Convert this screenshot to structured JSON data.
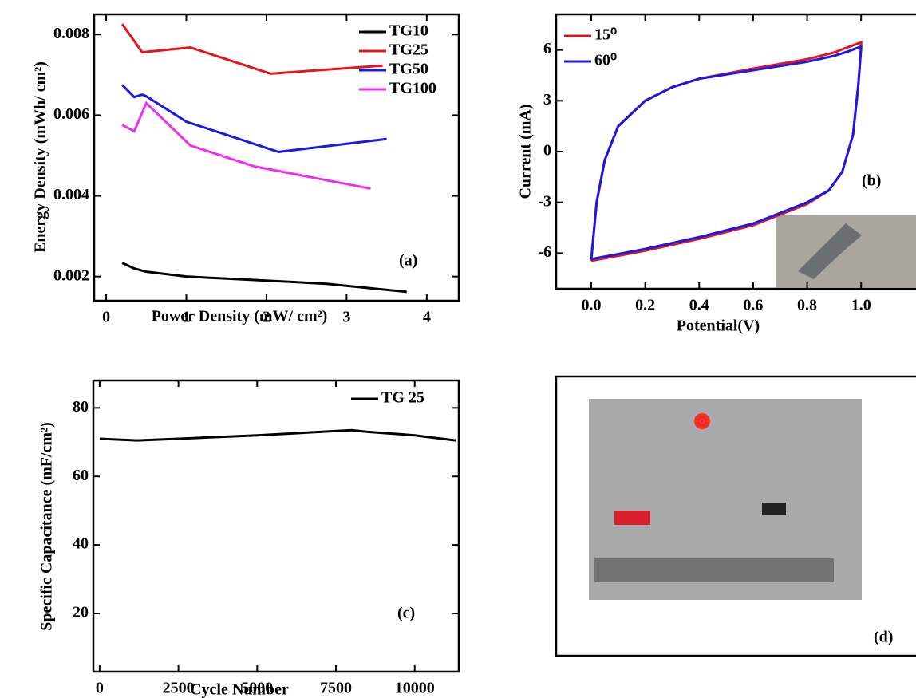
{
  "chart_data": [
    {
      "type": "line",
      "annotation": "(a)",
      "x_label": "Power Density (mW/ cm²)",
      "y_label": "Energy Density (mWh/ cm²)",
      "xlim": [
        -0.15,
        4.4
      ],
      "xticks": [
        0,
        1,
        2,
        3,
        4
      ],
      "ylim": [
        0.0014,
        0.0085
      ],
      "yticks": [
        0.002,
        0.004,
        0.006,
        0.008
      ],
      "legend": "upper right",
      "series": [
        {
          "name": "TG10",
          "color": "#000000",
          "x": [
            0.2,
            0.35,
            0.5,
            1.0,
            2.0,
            2.75,
            3.75
          ],
          "values": [
            0.00234,
            0.0022,
            0.00212,
            0.002,
            0.0019,
            0.00182,
            0.00162
          ]
        },
        {
          "name": "TG25",
          "color": "#e8141c",
          "x": [
            0.2,
            0.45,
            1.05,
            2.05,
            3.45
          ],
          "values": [
            0.00826,
            0.00756,
            0.00768,
            0.00703,
            0.00723
          ]
        },
        {
          "name": "TG50",
          "color": "#1a1ae6",
          "x": [
            0.2,
            0.35,
            0.45,
            0.5,
            1.0,
            2.15,
            3.5
          ],
          "values": [
            0.00675,
            0.00645,
            0.00651,
            0.00647,
            0.00584,
            0.00509,
            0.00541
          ]
        },
        {
          "name": "TG100",
          "color": "#f02ef0",
          "x": [
            0.2,
            0.35,
            0.5,
            1.05,
            1.85,
            3.3
          ],
          "values": [
            0.00576,
            0.0056,
            0.0063,
            0.00525,
            0.00473,
            0.00418
          ]
        }
      ]
    },
    {
      "type": "line",
      "annotation": "(b)",
      "x_label": "Potential(V)",
      "y_label": "Current (mA)",
      "xlim": [
        -0.13,
        1.23
      ],
      "xticks": [
        {
          "value": 0,
          "label": "0.0"
        },
        0.2,
        0.4,
        0.6,
        0.8,
        {
          "value": 1,
          "label": "1.0"
        }
      ],
      "ylim": [
        -8.1,
        8.1
      ],
      "yticks": [
        6,
        3,
        0,
        -3,
        -6
      ],
      "legend": "upper left",
      "series": [
        {
          "name": "15⁰",
          "color": "#e8141c",
          "x": [
            0,
            0.02,
            0.05,
            0.1,
            0.2,
            0.3,
            0.4,
            0.6,
            0.8,
            0.9,
            0.95,
            1.0,
            1.0,
            0.99,
            0.97,
            0.93,
            0.88,
            0.8,
            0.6,
            0.4,
            0.2,
            0.1,
            0
          ],
          "values": [
            -6.45,
            -3,
            -0.5,
            1.5,
            3,
            3.8,
            4.3,
            4.9,
            5.45,
            5.85,
            6.15,
            6.45,
            6.3,
            4,
            1,
            -1.2,
            -2.3,
            -3.1,
            -4.35,
            -5.15,
            -5.85,
            -6.15,
            -6.45
          ]
        },
        {
          "name": "60⁰",
          "color": "#1a1ae6",
          "x": [
            0,
            0.02,
            0.05,
            0.1,
            0.2,
            0.3,
            0.4,
            0.6,
            0.8,
            0.9,
            0.95,
            1.0,
            1.0,
            0.99,
            0.97,
            0.93,
            0.88,
            0.8,
            0.6,
            0.4,
            0.2,
            0.1,
            0
          ],
          "values": [
            -6.35,
            -3,
            -0.5,
            1.5,
            3,
            3.8,
            4.3,
            4.8,
            5.3,
            5.65,
            5.9,
            6.2,
            6.1,
            4,
            1,
            -1.2,
            -2.3,
            -3.0,
            -4.25,
            -5.05,
            -5.75,
            -6.05,
            -6.35
          ]
        }
      ]
    },
    {
      "type": "line",
      "annotation": "(c)",
      "x_label": "Cycle Number",
      "y_label": "Specific Capacitance (mF/cm²)",
      "xlim": [
        -200,
        11400
      ],
      "xticks": [
        0,
        2500,
        5000,
        7500,
        10000
      ],
      "ylim": [
        3,
        88
      ],
      "yticks": [
        20,
        40,
        60,
        80
      ],
      "legend": "upper right",
      "series": [
        {
          "name": "TG 25",
          "color": "#000000",
          "x": [
            0,
            1200,
            2500,
            5000,
            7000,
            8000,
            8500,
            10000,
            11300
          ],
          "values": [
            71,
            70.5,
            71,
            72,
            73,
            73.5,
            73,
            72,
            70.5
          ]
        }
      ]
    }
  ],
  "panel_d": {
    "annotation": "(d)"
  }
}
